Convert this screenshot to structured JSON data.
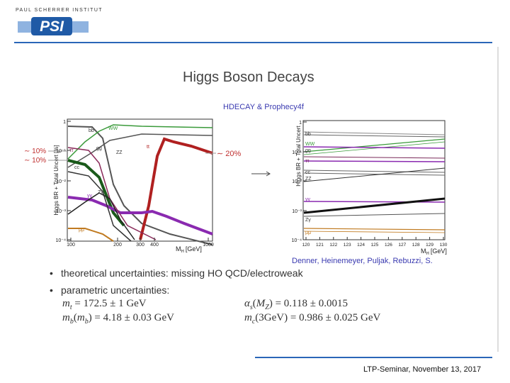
{
  "header": {
    "institute": "PAUL SCHERRER INSTITUT",
    "logo": "PSI"
  },
  "title": "Higgs Boson Decays",
  "subtitle": "HDECAY & Prophecy4f",
  "left_plot": {
    "y_label": "Higgs BR + Total Uncert [%]",
    "x_label": {
      "symbol": "M",
      "sub": "H",
      "unit": "[GeV]"
    },
    "yticks": [
      "1",
      "10⁻¹",
      "10⁻²",
      "10⁻³",
      "10⁻⁴"
    ],
    "xticks": [
      "100",
      "200",
      "300",
      "400",
      "1000"
    ],
    "curve_labels": [
      "bb",
      "WW",
      "ττ",
      "gg",
      "cc",
      "ZZ",
      "tt",
      "γγ",
      "Zγ",
      "μμ"
    ],
    "annotations": [
      "∼ 10%",
      "∼ 10%",
      "∼ 20%"
    ]
  },
  "right_plot": {
    "y_label": "Higgs BR + Total Uncert",
    "x_label": {
      "symbol": "M",
      "sub": "H",
      "unit": "[GeV]"
    },
    "yticks": [
      "1",
      "10⁻¹",
      "10⁻²",
      "10⁻³",
      "10⁻⁴"
    ],
    "xticks": [
      "120",
      "121",
      "122",
      "123",
      "124",
      "125",
      "126",
      "127",
      "128",
      "129",
      "130"
    ],
    "curve_labels": [
      "bb",
      "WW",
      "gg",
      "ττ",
      "cc",
      "ZZ",
      "γγ",
      "Zγ",
      "μμ"
    ]
  },
  "credit": "Denner, Heinemeyer, Puljak, Rebuzzi, S.",
  "bullets": [
    "theoretical uncertainties: missing HO QCD/electroweak",
    "parametric uncertainties:"
  ],
  "equations": [
    [
      {
        "sym": "m"
      },
      {
        "sub": "t"
      },
      {
        "text": " = 172.5 ± 1 GeV"
      }
    ],
    [
      {
        "sym": "α"
      },
      {
        "sub": "s"
      },
      {
        "text": "("
      },
      {
        "sym": "M"
      },
      {
        "sub": "Z"
      },
      {
        "text": ") = 0.118 ± 0.0015"
      }
    ],
    [
      {
        "sym": "m"
      },
      {
        "sub": "b"
      },
      {
        "text": "("
      },
      {
        "sym": "m"
      },
      {
        "sub": "b"
      },
      {
        "text": ") = 4.18 ± 0.03 GeV"
      }
    ],
    [
      {
        "sym": "m"
      },
      {
        "sub": "c"
      },
      {
        "text": "(3GeV) = 0.986 ± 0.025 GeV"
      }
    ]
  ],
  "footer": "LTP-Seminar, November 13, 2017"
}
